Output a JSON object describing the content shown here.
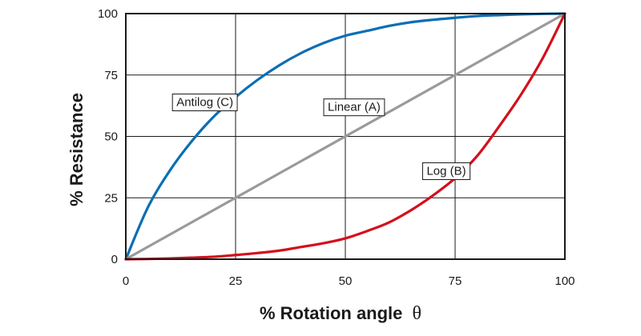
{
  "chart_data": {
    "type": "line",
    "title": "",
    "xlabel": "% Rotation angle",
    "xlabel_symbol": "θ",
    "ylabel": "% Resistance",
    "xlim": [
      0,
      100
    ],
    "ylim": [
      0,
      100
    ],
    "xticks": [
      "0",
      "25",
      "50",
      "75",
      "100"
    ],
    "yticks": [
      "0",
      "25",
      "50",
      "75",
      "100"
    ],
    "grid": true,
    "legend": "none",
    "series": [
      {
        "name": "Antilog (C)",
        "color": "#0a6eb4",
        "x": [
          0,
          5,
          10,
          15,
          20,
          25,
          30,
          35,
          40,
          45,
          50,
          55,
          60,
          65,
          70,
          75,
          80,
          85,
          90,
          95,
          100
        ],
        "y": [
          0,
          21,
          36,
          48,
          58,
          66,
          73,
          79,
          84,
          88,
          91,
          93,
          95,
          96.5,
          97.5,
          98.3,
          99,
          99.4,
          99.7,
          99.9,
          100
        ]
      },
      {
        "name": "Linear (A)",
        "color": "#9a9a9a",
        "x": [
          0,
          100
        ],
        "y": [
          0,
          100
        ]
      },
      {
        "name": "Log (B)",
        "color": "#d40f1c",
        "x": [
          0,
          5,
          10,
          15,
          20,
          25,
          30,
          35,
          40,
          45,
          50,
          55,
          60,
          65,
          70,
          75,
          80,
          85,
          90,
          95,
          100
        ],
        "y": [
          0,
          0.1,
          0.3,
          0.6,
          1,
          1.7,
          2.5,
          3.5,
          5,
          6.5,
          8.5,
          11.5,
          15,
          20,
          26,
          33,
          42,
          54,
          67,
          82,
          100
        ]
      }
    ],
    "annotations": [
      {
        "text": "Antilog (C)",
        "x": 18,
        "y": 64
      },
      {
        "text": "Linear (A)",
        "x": 52,
        "y": 62
      },
      {
        "text": "Log (B)",
        "x": 73,
        "y": 36
      }
    ]
  }
}
